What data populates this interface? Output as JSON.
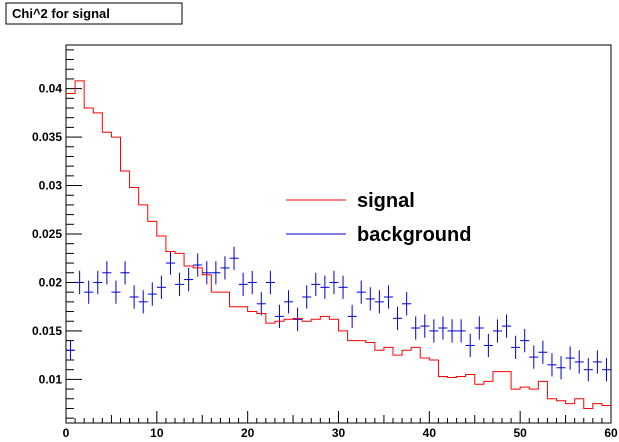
{
  "chart_data": {
    "type": "line",
    "title": "Chi^2 for signal",
    "xlim": [
      0,
      60
    ],
    "ylim": [
      0.0055,
      0.0445
    ],
    "x_ticks": [
      0,
      10,
      20,
      30,
      40,
      50,
      60
    ],
    "x_tick_labels": [
      "0",
      "10",
      "20",
      "30",
      "40",
      "50",
      "60"
    ],
    "y_ticks": [
      0.01,
      0.015,
      0.02,
      0.025,
      0.03,
      0.035,
      0.04
    ],
    "y_tick_labels": [
      "0.01",
      "0.015",
      "0.02",
      "0.025",
      "0.03",
      "0.035",
      "0.04"
    ],
    "legend_placement": "center-right",
    "grid": false,
    "series": [
      {
        "name": "signal",
        "style": "histogram-step",
        "color": "#ff0000",
        "bin_edges_start": 0,
        "bin_width": 1,
        "values": [
          0.0395,
          0.0408,
          0.038,
          0.0375,
          0.0355,
          0.035,
          0.0315,
          0.0298,
          0.028,
          0.0263,
          0.0248,
          0.0232,
          0.023,
          0.0217,
          0.0215,
          0.0208,
          0.019,
          0.019,
          0.0175,
          0.0175,
          0.017,
          0.0168,
          0.0158,
          0.016,
          0.0162,
          0.0163,
          0.016,
          0.0162,
          0.0165,
          0.0162,
          0.015,
          0.014,
          0.014,
          0.0138,
          0.013,
          0.0133,
          0.0125,
          0.013,
          0.0133,
          0.0122,
          0.012,
          0.0103,
          0.0102,
          0.0103,
          0.0105,
          0.0095,
          0.0098,
          0.0108,
          0.0108,
          0.009,
          0.0092,
          0.009,
          0.0098,
          0.008,
          0.0078,
          0.0075,
          0.008,
          0.007,
          0.0075,
          0.0073
        ]
      },
      {
        "name": "background",
        "style": "errorbar",
        "color": "#0000cc",
        "x": [
          0.5,
          1.5,
          2.5,
          3.5,
          4.5,
          5.5,
          6.5,
          7.5,
          8.5,
          9.5,
          10.5,
          11.5,
          12.5,
          13.5,
          14.5,
          15.5,
          16.5,
          17.5,
          18.5,
          19.5,
          20.5,
          21.5,
          22.5,
          23.5,
          24.5,
          25.5,
          26.5,
          27.5,
          28.5,
          29.5,
          30.5,
          31.5,
          32.5,
          33.5,
          34.5,
          35.5,
          36.5,
          37.5,
          38.5,
          39.5,
          40.5,
          41.5,
          42.5,
          43.5,
          44.5,
          45.5,
          46.5,
          47.5,
          48.5,
          49.5,
          50.5,
          51.5,
          52.5,
          53.5,
          54.5,
          55.5,
          56.5,
          57.5,
          58.5,
          59.5
        ],
        "y": [
          0.013,
          0.02,
          0.019,
          0.02,
          0.021,
          0.019,
          0.021,
          0.0185,
          0.018,
          0.0188,
          0.0195,
          0.022,
          0.0198,
          0.0203,
          0.0218,
          0.021,
          0.021,
          0.0215,
          0.0225,
          0.0198,
          0.02,
          0.0178,
          0.02,
          0.0165,
          0.018,
          0.0162,
          0.0185,
          0.0198,
          0.0195,
          0.02,
          0.0195,
          0.0165,
          0.019,
          0.0183,
          0.018,
          0.0185,
          0.0163,
          0.0178,
          0.0153,
          0.0155,
          0.015,
          0.0153,
          0.015,
          0.015,
          0.0135,
          0.0153,
          0.0135,
          0.015,
          0.0155,
          0.0133,
          0.014,
          0.0123,
          0.0128,
          0.0115,
          0.0112,
          0.0122,
          0.0118,
          0.011,
          0.0118,
          0.011
        ],
        "yerr": [
          0.001,
          0.0012,
          0.0012,
          0.0012,
          0.0012,
          0.0012,
          0.0012,
          0.0012,
          0.0012,
          0.0012,
          0.0012,
          0.0012,
          0.0012,
          0.0012,
          0.0012,
          0.0012,
          0.0012,
          0.0012,
          0.0012,
          0.0012,
          0.0012,
          0.0012,
          0.0012,
          0.0012,
          0.0012,
          0.0012,
          0.0012,
          0.0012,
          0.0012,
          0.0012,
          0.0012,
          0.0012,
          0.0012,
          0.0012,
          0.0012,
          0.0012,
          0.0012,
          0.0012,
          0.0012,
          0.0012,
          0.0012,
          0.0012,
          0.0012,
          0.0012,
          0.0012,
          0.0012,
          0.0012,
          0.0012,
          0.0012,
          0.0012,
          0.0012,
          0.0012,
          0.0012,
          0.0012,
          0.0012,
          0.0012,
          0.0012,
          0.0012,
          0.0012,
          0.0012
        ]
      }
    ]
  }
}
